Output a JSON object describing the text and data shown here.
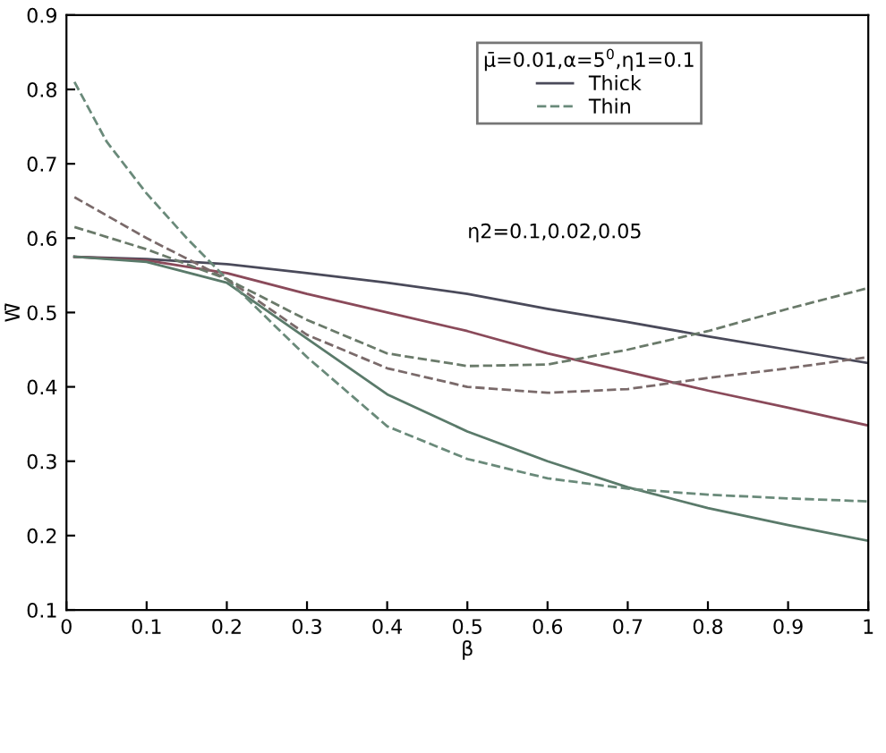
{
  "chart_data": {
    "type": "line",
    "xlabel": "β",
    "ylabel": "W̄",
    "legend_title": "μ̄=0.01,α=5$^{0}$,η1=0.1",
    "x": [
      0.01,
      0.1,
      0.2,
      0.3,
      0.4,
      0.5,
      0.6,
      0.7,
      0.8,
      0.9,
      1
    ],
    "series": [
      {
        "name": "Thick",
        "color": "#4a4a5a",
        "line_style": "solid",
        "values": [
          0.575,
          0.572,
          0.565,
          0.553,
          0.54,
          0.525,
          0.505,
          0.487,
          0.468,
          0.45,
          0.432
        ]
      },
      {
        "color": "#8a4a5a",
        "line_style": "solid",
        "values": [
          0.575,
          0.57,
          0.553,
          0.525,
          0.5,
          0.475,
          0.445,
          0.42,
          0.395,
          0.372,
          0.348
        ]
      },
      {
        "color": "#5a7a6a",
        "line_style": "solid",
        "values": [
          0.575,
          0.568,
          0.54,
          0.465,
          0.39,
          0.34,
          0.3,
          0.265,
          0.237,
          0.214,
          0.193
        ]
      },
      {
        "name": "Thin",
        "color": "#6a8a7a",
        "line_style": "dashed",
        "x": [
          0.01,
          0.05,
          0.1,
          0.15,
          0.2,
          0.3,
          0.4,
          0.5,
          0.6,
          0.7,
          0.8,
          0.9,
          1
        ],
        "values": [
          0.81,
          0.73,
          0.66,
          0.6,
          0.545,
          0.44,
          0.347,
          0.303,
          0.277,
          0.263,
          0.255,
          0.25,
          0.246
        ]
      },
      {
        "color": "#7a6a6a",
        "line_style": "dashed",
        "values": [
          0.655,
          0.6,
          0.545,
          0.47,
          0.425,
          0.4,
          0.392,
          0.397,
          0.412,
          0.425,
          0.44
        ]
      },
      {
        "color": "#6a7a6a",
        "line_style": "dashed",
        "values": [
          0.615,
          0.585,
          0.545,
          0.49,
          0.445,
          0.428,
          0.43,
          0.45,
          0.475,
          0.505,
          0.533
        ]
      }
    ],
    "annotations": [
      "η2=0.1,0.02,0.05"
    ],
    "xlim": [
      0,
      1
    ],
    "ylim": [
      0.1,
      0.9
    ],
    "xticks": [
      0,
      0.1,
      0.2,
      0.3,
      0.4,
      0.5,
      0.6,
      0.7,
      0.8,
      0.9,
      1
    ],
    "yticks": [
      0.1,
      0.2,
      0.3,
      0.4,
      0.5,
      0.6,
      0.7,
      0.8,
      0.9
    ],
    "legend": "top right",
    "grid": false
  }
}
